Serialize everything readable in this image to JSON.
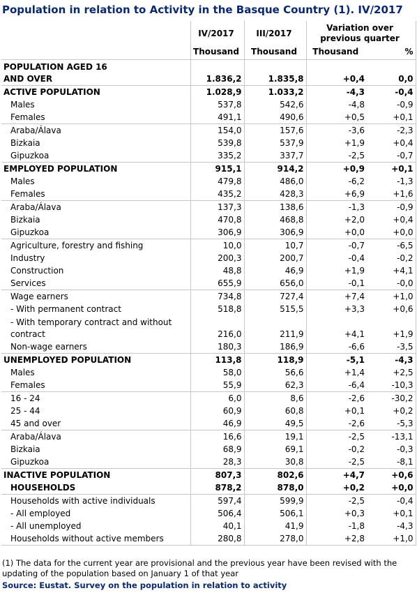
{
  "title": "Population in relation to Activity in the Basque Country (1). IV/2017",
  "headers": {
    "col1": "IV/2017",
    "col2": "III/2017",
    "variation": "Variation over previous quarter",
    "unit1": "Thousand",
    "unit2": "Thousand",
    "unit3": "Thousand",
    "unit4": "%"
  },
  "rows": [
    {
      "label": "POPULATION AGED 16 AND OVER",
      "v1": "1.836,2",
      "v2": "1.835,8",
      "v3": "+0,4",
      "v4": "0,0"
    },
    {
      "label": "ACTIVE POPULATION",
      "v1": "1.028,9",
      "v2": "1.033,2",
      "v3": "-4,3",
      "v4": "-0,4"
    },
    {
      "label": "Males",
      "v1": "537,8",
      "v2": "542,6",
      "v3": "-4,8",
      "v4": "-0,9"
    },
    {
      "label": "Females",
      "v1": "491,1",
      "v2": "490,6",
      "v3": "+0,5",
      "v4": "+0,1"
    },
    {
      "label": "Araba/Álava",
      "v1": "154,0",
      "v2": "157,6",
      "v3": "-3,6",
      "v4": "-2,3"
    },
    {
      "label": "Bizkaia",
      "v1": "539,8",
      "v2": "537,9",
      "v3": "+1,9",
      "v4": "+0,4"
    },
    {
      "label": "Gipuzkoa",
      "v1": "335,2",
      "v2": "337,7",
      "v3": "-2,5",
      "v4": "-0,7"
    },
    {
      "label": "EMPLOYED POPULATION",
      "v1": "915,1",
      "v2": "914,2",
      "v3": "+0,9",
      "v4": "+0,1"
    },
    {
      "label": "Males",
      "v1": "479,8",
      "v2": "486,0",
      "v3": "-6,2",
      "v4": "-1,3"
    },
    {
      "label": "Females",
      "v1": "435,2",
      "v2": "428,3",
      "v3": "+6,9",
      "v4": "+1,6"
    },
    {
      "label": "Araba/Álava",
      "v1": "137,3",
      "v2": "138,6",
      "v3": "-1,3",
      "v4": "-0,9"
    },
    {
      "label": "Bizkaia",
      "v1": "470,8",
      "v2": "468,8",
      "v3": "+2,0",
      "v4": "+0,4"
    },
    {
      "label": "Gipuzkoa",
      "v1": "306,9",
      "v2": "306,9",
      "v3": "+0,0",
      "v4": "+0,0"
    },
    {
      "label": "Agriculture, forestry and fishing",
      "v1": "10,0",
      "v2": "10,7",
      "v3": "-0,7",
      "v4": "-6,5"
    },
    {
      "label": "Industry",
      "v1": "200,3",
      "v2": "200,7",
      "v3": "-0,4",
      "v4": "-0,2"
    },
    {
      "label": "Construction",
      "v1": "48,8",
      "v2": "46,9",
      "v3": "+1,9",
      "v4": "+4,1"
    },
    {
      "label": "Services",
      "v1": "655,9",
      "v2": "656,0",
      "v3": "-0,1",
      "v4": "-0,0"
    },
    {
      "label": "Wage earners",
      "v1": "734,8",
      "v2": "727,4",
      "v3": "+7,4",
      "v4": "+1,0"
    },
    {
      "label": "- With permanent contract",
      "v1": "518,8",
      "v2": "515,5",
      "v3": "+3,3",
      "v4": "+0,6"
    },
    {
      "label": "- With temporary contract and without contract",
      "v1": "216,0",
      "v2": "211,9",
      "v3": "+4,1",
      "v4": "+1,9"
    },
    {
      "label": "Non-wage earners",
      "v1": "180,3",
      "v2": "186,9",
      "v3": "-6,6",
      "v4": "-3,5"
    },
    {
      "label": "UNEMPLOYED POPULATION",
      "v1": "113,8",
      "v2": "118,9",
      "v3": "-5,1",
      "v4": "-4,3"
    },
    {
      "label": "Males",
      "v1": "58,0",
      "v2": "56,6",
      "v3": "+1,4",
      "v4": "+2,5"
    },
    {
      "label": "Females",
      "v1": "55,9",
      "v2": "62,3",
      "v3": "-6,4",
      "v4": "-10,3"
    },
    {
      "label": "16 - 24",
      "v1": "6,0",
      "v2": "8,6",
      "v3": "-2,6",
      "v4": "-30,2"
    },
    {
      "label": "25 - 44",
      "v1": "60,9",
      "v2": "60,8",
      "v3": "+0,1",
      "v4": "+0,2"
    },
    {
      "label": "45 and over",
      "v1": "46,9",
      "v2": "49,5",
      "v3": "-2,6",
      "v4": "-5,3"
    },
    {
      "label": "Araba/Álava",
      "v1": "16,6",
      "v2": "19,1",
      "v3": "-2,5",
      "v4": "-13,1"
    },
    {
      "label": "Bizkaia",
      "v1": "68,9",
      "v2": "69,1",
      "v3": "-0,2",
      "v4": "-0,3"
    },
    {
      "label": "Gipuzkoa",
      "v1": "28,3",
      "v2": "30,8",
      "v3": "-2,5",
      "v4": "-8,1"
    },
    {
      "label": "INACTIVE POPULATION",
      "v1": "807,3",
      "v2": "802,6",
      "v3": "+4,7",
      "v4": "+0,6"
    },
    {
      "label": "HOUSEHOLDS",
      "v1": "878,2",
      "v2": "878,0",
      "v3": "+0,2",
      "v4": "+0,0"
    },
    {
      "label": "Households with active individuals",
      "v1": "597,4",
      "v2": "599,9",
      "v3": "-2,5",
      "v4": "-0,4"
    },
    {
      "label": "- All employed",
      "v1": "506,4",
      "v2": "506,1",
      "v3": "+0,3",
      "v4": "+0,1"
    },
    {
      "label": "- All unemployed",
      "v1": "40,1",
      "v2": "41,9",
      "v3": "-1,8",
      "v4": "-4,3"
    },
    {
      "label": "Households without active members",
      "v1": "280,8",
      "v2": "278,0",
      "v3": "+2,8",
      "v4": "+1,0"
    }
  ],
  "footnote": "(1) The data for the current year are provisional and the previous year have been revised with the updating of the population based on January 1 of that year",
  "source": "Source: Eustat. Survey on the population in relation to activity"
}
